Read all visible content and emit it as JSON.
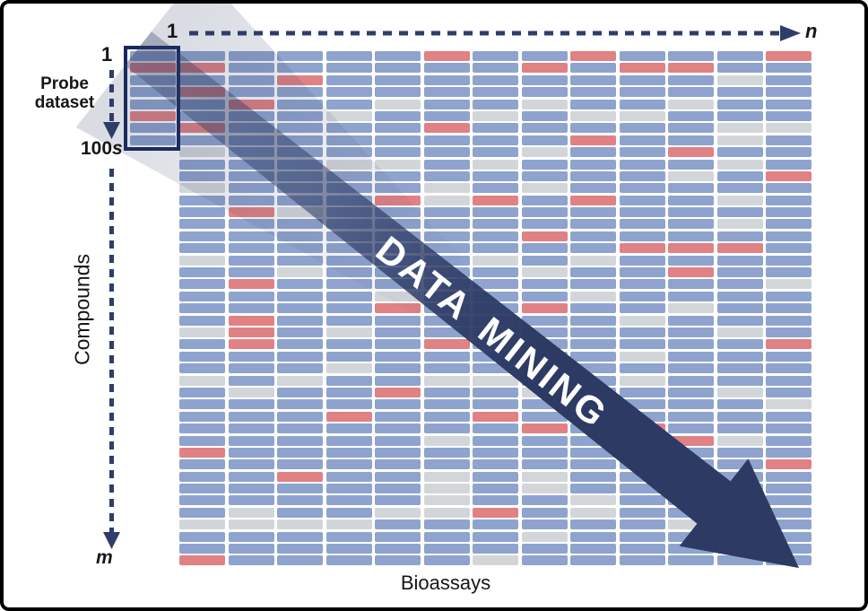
{
  "figure": {
    "banner_text": "DATA MINING",
    "x_axis_label": "Bioassays",
    "y_axis_label": "Compounds",
    "x_start_label": "1",
    "x_end_label": "n",
    "y_start_label": "1",
    "probe_end_number": "100",
    "probe_end_suffix": "s",
    "y_end_label": "m",
    "probe_label_line1": "Probe",
    "probe_label_line2": "dataset"
  },
  "colors": {
    "cell_blue": "#8EA3CD",
    "cell_gray": "#D3D6D9",
    "cell_red": "#E08184",
    "band_navy": "#2C3A64",
    "outline_navy": "#16295E",
    "dash_navy": "#2E3D6B"
  },
  "grid": {
    "columns": 13,
    "rows_count": 43,
    "cell_codes": {
      "b": "blue",
      "g": "gray",
      "r": "red"
    },
    "probe_column_cells": "brbbbrbb",
    "rows": [
      "bbbbbrbbrbbbr",
      "rbbbbbbrbrrbb",
      "bbrbbbbbbbbgb",
      "rbbbbbbbbbbbb",
      "brbbgbbgbbgbb",
      "bbbgbbgbggbbb",
      "rbbbbrbbbbbgg",
      "bbbbbbbbrbbgb",
      "gbbbbbbgbbrbb",
      "bbbggbgbbbbgb",
      "bbbbbbbbbbgbr",
      "gbbbbgbgbbbbb",
      "bbbbrgrbrbbgb",
      "brgbbbbbbbbbb",
      "bbbbbbbbbbbgb",
      "bbbbbbbrbbbbb",
      "bbbbbbbbbrrrb",
      "gbbbbbgbgbbbb",
      "bbgbbbbgbbrbb",
      "brbbbbbbbbbbg",
      "bbbbgbbbgbbbb",
      "bbbbrbbrbbgbb",
      "brbbbbbbbgbbb",
      "grbgbbbbbbbgb",
      "brbbbrbbbbbbr",
      "bbbbbbbbbgbbb",
      "bbbgbbbbbbbbb",
      "gbgbbggbbgbbb",
      "bgbbrbbgbbbgb",
      "bbbbbbbbbbbbg",
      "bbbrbbrbbbbbb",
      "bbbbbbbrbrbbb",
      "bbbbbgbbbbrgb",
      "rbbbbbbbbbbbb",
      "bbbbbbbbbbbbr",
      "bbrbbgbgbbbbb",
      "bbbbbgbgbbbbb",
      "bbbbbgbbgbbbb",
      "bgbbggrbgbbbb",
      "ggggbbbbbbgbb",
      "bbbbbbbgbbbbb",
      "bbbbbbbbbbbrb",
      "rbbbbbgbbbbbb"
    ]
  }
}
